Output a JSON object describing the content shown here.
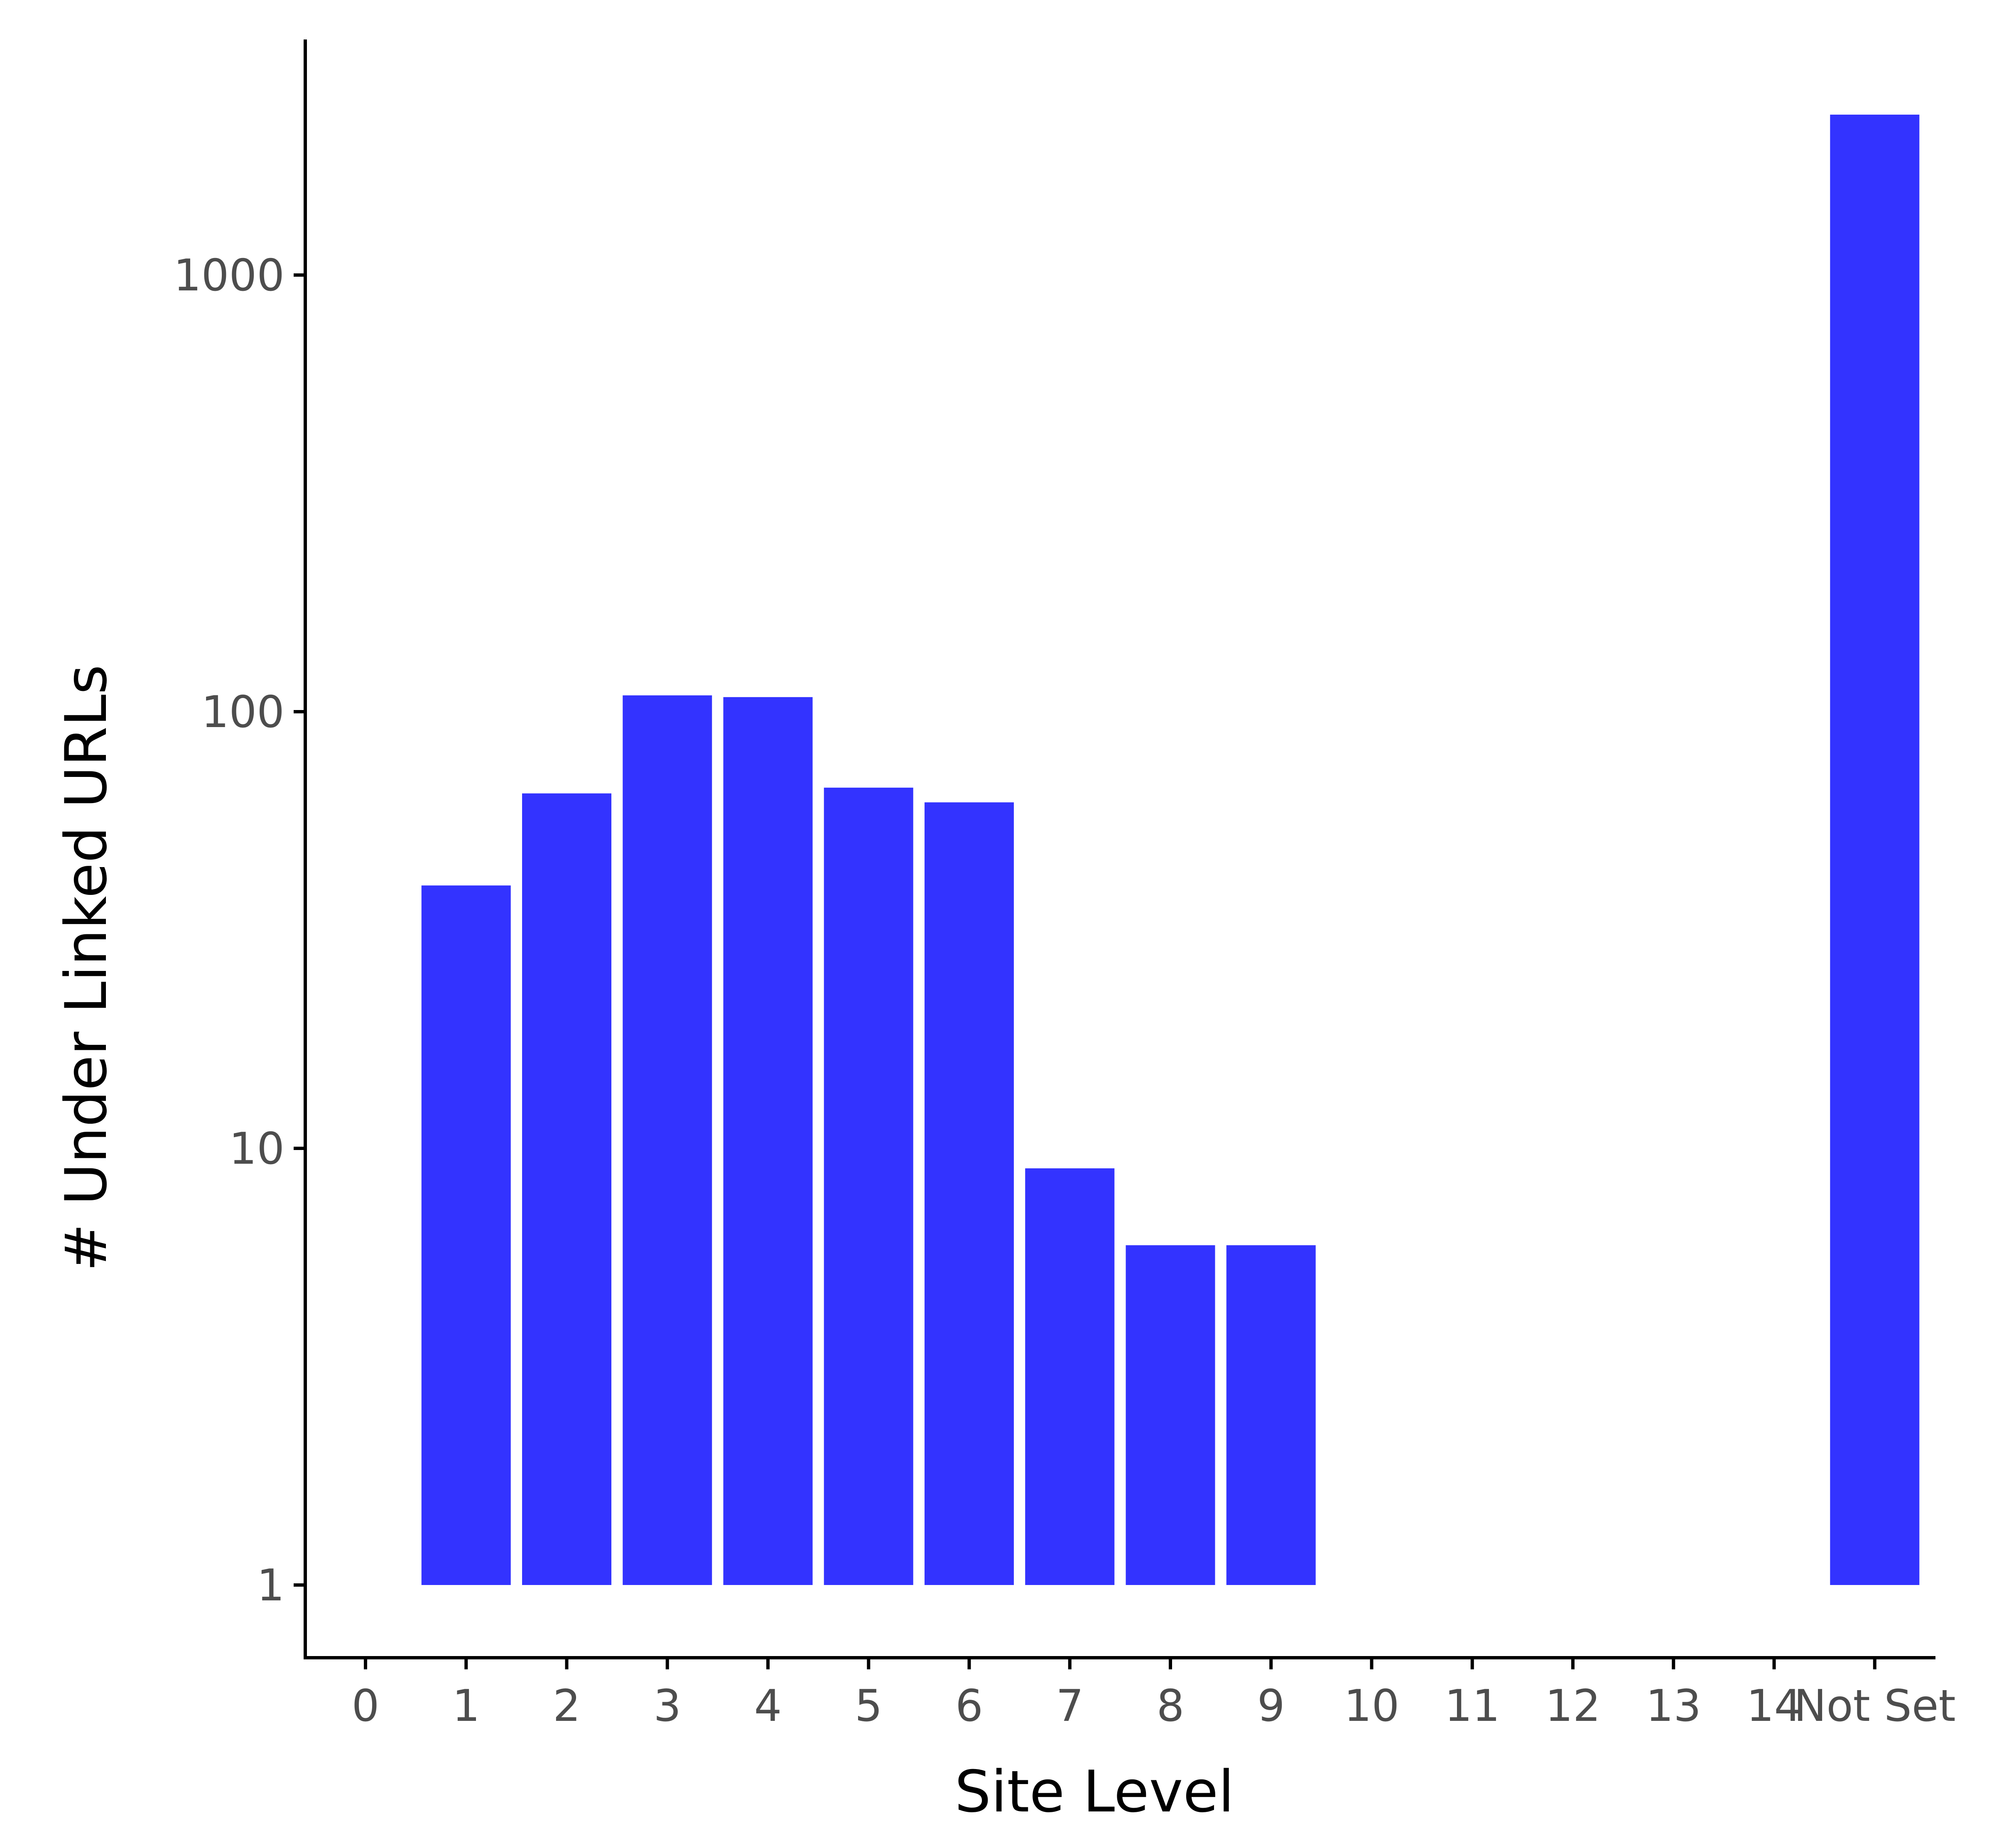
{
  "chart_data": {
    "type": "bar",
    "title": "",
    "xlabel": "Site Level",
    "ylabel": "# Under Linked URLs",
    "y_scale": "log10",
    "ylim": [
      0.6,
      3500
    ],
    "y_ticks": [
      1,
      10,
      100,
      1000
    ],
    "y_tick_labels": [
      "1",
      "10",
      "100",
      "1000"
    ],
    "categories": [
      "0",
      "1",
      "2",
      "3",
      "4",
      "5",
      "6",
      "7",
      "8",
      "9",
      "10",
      "11",
      "12",
      "13",
      "14",
      "Not Set"
    ],
    "values": [
      null,
      40,
      65,
      109,
      108,
      67,
      62,
      9,
      6,
      6,
      null,
      null,
      null,
      null,
      null,
      2330
    ],
    "bar_base": 1,
    "bar_color": "#3333ff",
    "grid": false,
    "legend": "none"
  }
}
